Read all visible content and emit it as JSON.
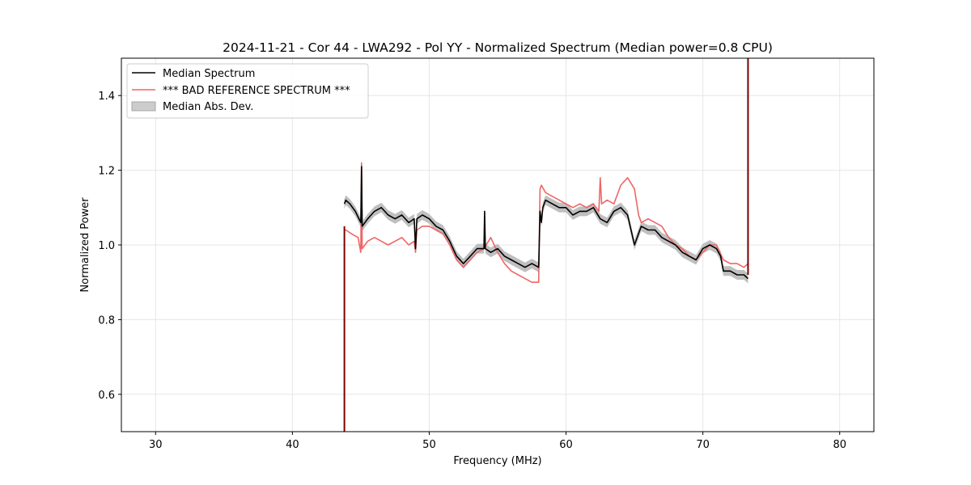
{
  "chart_data": {
    "type": "line",
    "title": "2024-11-21 - Cor 44 - LWA292 - Pol YY - Normalized Spectrum (Median power=0.8 CPU)",
    "xlabel": "Frequency (MHz)",
    "ylabel": "Normalized Power",
    "xlim": [
      27.5,
      82.5
    ],
    "ylim": [
      0.5,
      1.5
    ],
    "xticks": [
      30,
      40,
      50,
      60,
      70,
      80
    ],
    "xtick_labels": [
      "30",
      "40",
      "50",
      "60",
      "70",
      "80"
    ],
    "yticks": [
      0.6,
      0.8,
      1.0,
      1.2,
      1.4
    ],
    "ytick_labels": [
      "0.6",
      "0.8",
      "1.0",
      "1.2",
      "1.4"
    ],
    "grid": true,
    "legend_position": "top-left",
    "legend": [
      "Median Spectrum",
      "*** BAD REFERENCE SPECTRUM ***",
      "Median Abs. Dev."
    ],
    "series": [
      {
        "name": "Median Spectrum",
        "color": "#000000",
        "x": [
          43.8,
          43.9,
          44.2,
          44.6,
          45.0,
          45.05,
          45.1,
          45.5,
          46.0,
          46.5,
          47.0,
          47.5,
          48.0,
          48.5,
          48.9,
          49.0,
          49.1,
          49.5,
          50.0,
          50.5,
          51.0,
          51.5,
          52.0,
          52.5,
          53.0,
          53.5,
          54.0,
          54.05,
          54.1,
          54.5,
          55.0,
          55.5,
          56.0,
          56.5,
          57.0,
          57.5,
          58.0,
          58.1,
          58.2,
          58.3,
          58.5,
          59.0,
          59.5,
          60.0,
          60.5,
          61.0,
          61.5,
          62.0,
          62.5,
          63.0,
          63.5,
          64.0,
          64.5,
          65.0,
          65.5,
          66.0,
          66.5,
          67.0,
          67.5,
          68.0,
          68.5,
          69.0,
          69.5,
          70.0,
          70.5,
          71.0,
          71.3,
          71.5,
          72.0,
          72.5,
          73.0,
          73.3
        ],
        "y": [
          1.11,
          1.12,
          1.11,
          1.09,
          1.06,
          1.21,
          1.05,
          1.07,
          1.09,
          1.1,
          1.08,
          1.07,
          1.08,
          1.06,
          1.07,
          0.99,
          1.07,
          1.08,
          1.07,
          1.05,
          1.04,
          1.01,
          0.97,
          0.95,
          0.97,
          0.99,
          0.99,
          1.09,
          0.99,
          0.98,
          0.99,
          0.97,
          0.96,
          0.95,
          0.94,
          0.95,
          0.94,
          1.09,
          1.06,
          1.1,
          1.12,
          1.11,
          1.1,
          1.1,
          1.08,
          1.09,
          1.09,
          1.1,
          1.07,
          1.06,
          1.09,
          1.1,
          1.08,
          1.0,
          1.05,
          1.04,
          1.04,
          1.02,
          1.01,
          1.0,
          0.98,
          0.97,
          0.96,
          0.99,
          1.0,
          0.99,
          0.97,
          0.93,
          0.93,
          0.92,
          0.92,
          0.91
        ]
      },
      {
        "name": "*** BAD REFERENCE SPECTRUM ***",
        "color": "#ee6666",
        "x": [
          43.8,
          43.9,
          44.3,
          44.8,
          45.0,
          45.05,
          45.1,
          45.5,
          46.0,
          46.5,
          47.0,
          47.5,
          48.0,
          48.5,
          48.9,
          49.0,
          49.1,
          49.5,
          50.0,
          50.5,
          51.0,
          51.5,
          52.0,
          52.5,
          53.0,
          53.5,
          54.0,
          54.5,
          55.0,
          55.5,
          56.0,
          56.5,
          57.0,
          57.5,
          58.0,
          58.1,
          58.2,
          58.5,
          59.0,
          59.5,
          60.0,
          60.5,
          61.0,
          61.5,
          62.0,
          62.4,
          62.5,
          62.6,
          63.0,
          63.5,
          64.0,
          64.5,
          65.0,
          65.3,
          65.5,
          66.0,
          66.5,
          67.0,
          67.5,
          68.0,
          68.5,
          69.0,
          69.5,
          70.0,
          70.5,
          71.0,
          71.5,
          72.0,
          72.5,
          73.0,
          73.3
        ],
        "y": [
          1.04,
          1.04,
          1.03,
          1.02,
          0.98,
          1.22,
          0.99,
          1.01,
          1.02,
          1.01,
          1.0,
          1.01,
          1.02,
          1.0,
          1.01,
          0.98,
          1.04,
          1.05,
          1.05,
          1.04,
          1.03,
          1.0,
          0.96,
          0.94,
          0.96,
          0.98,
          0.99,
          1.02,
          0.98,
          0.95,
          0.93,
          0.92,
          0.91,
          0.9,
          0.9,
          1.15,
          1.16,
          1.14,
          1.13,
          1.12,
          1.11,
          1.1,
          1.11,
          1.1,
          1.11,
          1.09,
          1.18,
          1.11,
          1.12,
          1.11,
          1.16,
          1.18,
          1.15,
          1.08,
          1.06,
          1.07,
          1.06,
          1.05,
          1.02,
          1.0,
          0.99,
          0.97,
          0.96,
          0.98,
          1.0,
          1.0,
          0.96,
          0.95,
          0.95,
          0.94,
          0.95
        ]
      },
      {
        "name": "Median Abs. Dev.",
        "color": "#bfbfbf",
        "type": "band",
        "half_width": 0.013
      }
    ],
    "annotations": [
      {
        "type": "vertical-line",
        "x": 43.8,
        "color": "#7a0000",
        "y_range": [
          0.5,
          1.05
        ]
      },
      {
        "type": "vertical-line",
        "x": 73.3,
        "color": "#7a0000",
        "y_range": [
          0.92,
          1.5
        ]
      }
    ]
  }
}
